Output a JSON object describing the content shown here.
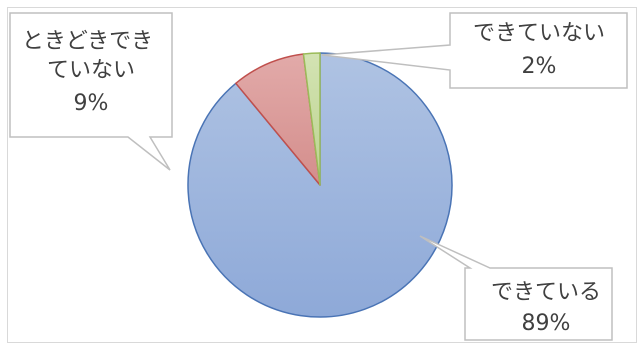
{
  "chart_data": {
    "type": "pie",
    "slices": [
      {
        "label": "できている",
        "value": 89,
        "value_label": "89%",
        "color": "#94ACD6",
        "stroke": "#4A74B5"
      },
      {
        "label": "ときどきできていない",
        "label_lines": [
          "ときどきでき",
          "ていない"
        ],
        "value": 9,
        "value_label": "9%",
        "color": "#D99694",
        "stroke": "#C0504D"
      },
      {
        "label": "できていない",
        "value": 2,
        "value_label": "2%",
        "color": "#C3D69B",
        "stroke": "#9BBB59"
      }
    ],
    "start_angle_deg": 0,
    "direction": "clockwise",
    "legend": "none",
    "data_labels": "callouts"
  }
}
